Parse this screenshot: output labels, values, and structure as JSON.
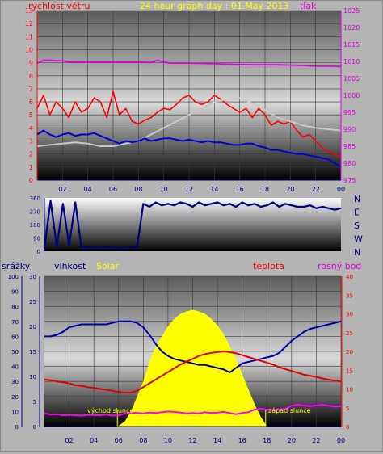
{
  "chart_data": [
    {
      "type": "line",
      "title": "24 hour graph day : 01.May 2013",
      "ylabel_left": "rychlost větru",
      "ylabel_right": "tlak",
      "x_range": [
        0,
        24
      ],
      "x_ticks": [
        "02",
        "04",
        "06",
        "08",
        "10",
        "12",
        "14",
        "16",
        "18",
        "20",
        "22",
        "00"
      ],
      "ylim_left": [
        0,
        13
      ],
      "yticks_left": [
        "0",
        "1",
        "2",
        "3",
        "4",
        "5",
        "6",
        "7",
        "8",
        "9",
        "10",
        "11",
        "12",
        "13"
      ],
      "ylim_right": [
        975,
        1025
      ],
      "yticks_right": [
        "975",
        "980",
        "985",
        "990",
        "995",
        "1000",
        "1005",
        "1010",
        "1015",
        "1020",
        "1025"
      ],
      "colors": {
        "pressure": "#e000e0",
        "gust": "#ff0000",
        "gray_series": "#c8c8c8",
        "wind": "#0000dd"
      },
      "series": [
        {
          "key": "pressure",
          "axis": "right",
          "x": [
            0,
            0.5,
            1,
            1.5,
            2,
            2.5,
            3,
            4,
            5,
            6,
            7,
            8,
            9,
            9.5,
            10,
            10.5,
            11,
            12,
            13,
            14,
            15,
            16,
            17,
            18,
            19,
            20,
            21,
            22,
            23,
            24
          ],
          "values": [
            1009.5,
            1010.3,
            1010.3,
            1010.2,
            1010.2,
            1009.8,
            1009.8,
            1009.8,
            1009.8,
            1009.8,
            1009.8,
            1009.8,
            1009.7,
            1010.3,
            1009.8,
            1009.5,
            1009.5,
            1009.5,
            1009.4,
            1009.3,
            1009.2,
            1009.1,
            1009,
            1009,
            1009,
            1008.9,
            1008.8,
            1008.6,
            1008.6,
            1008.5
          ]
        },
        {
          "key": "gust",
          "axis": "left",
          "x": [
            0,
            0.5,
            1,
            1.5,
            2,
            2.5,
            3,
            3.5,
            4,
            4.5,
            5,
            5.5,
            6,
            6.5,
            7,
            7.5,
            8,
            8.5,
            9,
            9.5,
            10,
            10.5,
            11,
            11.5,
            12,
            12.5,
            13,
            13.5,
            14,
            14.5,
            15,
            15.5,
            16,
            16.5,
            17,
            17.5,
            18,
            18.5,
            19,
            19.5,
            20,
            20.5,
            21,
            21.5,
            22,
            22.5,
            23,
            23.5,
            24
          ],
          "values": [
            5.5,
            6.5,
            5,
            6,
            5.5,
            4.8,
            6,
            5.2,
            5.5,
            6.3,
            6,
            4.8,
            6.8,
            5,
            5.5,
            4.5,
            4.3,
            4.6,
            4.8,
            5.2,
            5.5,
            5.4,
            5.8,
            6.3,
            6.5,
            6,
            5.8,
            6,
            6.5,
            6.2,
            5.8,
            5.5,
            5.2,
            5.5,
            4.8,
            5.5,
            5,
            4.2,
            4.5,
            4.3,
            4.5,
            3.8,
            3.3,
            3.5,
            3,
            2.5,
            2.2,
            2,
            1.8
          ]
        },
        {
          "key": "gray_series",
          "axis": "left",
          "x": [
            0,
            1,
            2,
            3,
            4,
            5,
            6,
            7,
            8,
            9,
            10,
            11,
            12,
            13,
            14,
            15,
            16,
            17,
            18,
            19,
            20,
            21,
            22,
            23,
            24
          ],
          "values": [
            2.6,
            2.7,
            2.8,
            2.9,
            2.8,
            2.6,
            2.6,
            2.8,
            3,
            3.5,
            4,
            4.5,
            5,
            5.5,
            6,
            6.2,
            6.3,
            5.9,
            5.4,
            4.8,
            4.5,
            4.2,
            4,
            3.9,
            3.8
          ]
        },
        {
          "key": "wind",
          "axis": "left",
          "x": [
            0,
            0.5,
            1,
            1.5,
            2,
            2.5,
            3,
            3.5,
            4,
            4.5,
            5,
            5.5,
            6,
            6.5,
            7,
            7.5,
            8,
            8.5,
            9,
            9.5,
            10,
            10.5,
            11,
            11.5,
            12,
            12.5,
            13,
            13.5,
            14,
            14.5,
            15,
            15.5,
            16,
            16.5,
            17,
            17.5,
            18,
            18.5,
            19,
            19.5,
            20,
            20.5,
            21,
            21.5,
            22,
            22.5,
            23,
            23.5,
            24
          ],
          "values": [
            3.5,
            3.8,
            3.5,
            3.3,
            3.5,
            3.6,
            3.4,
            3.5,
            3.5,
            3.6,
            3.4,
            3.2,
            3,
            2.8,
            3,
            2.9,
            3,
            3.2,
            3,
            3.1,
            3.2,
            3.2,
            3.1,
            3,
            3.1,
            3,
            2.9,
            3,
            2.9,
            2.9,
            2.8,
            2.7,
            2.7,
            2.8,
            2.8,
            2.6,
            2.5,
            2.3,
            2.3,
            2.2,
            2.1,
            2,
            2,
            1.9,
            1.8,
            1.7,
            1.6,
            1.3,
            1
          ]
        }
      ]
    },
    {
      "type": "line",
      "ylabel_left": "",
      "x_range": [
        0,
        24
      ],
      "ylim_left": [
        0,
        360
      ],
      "yticks_left": [
        "0",
        "90",
        "180",
        "270",
        "360"
      ],
      "yticks_right": [
        "N",
        "W",
        "S",
        "E",
        "N"
      ],
      "colors": {
        "direction": "#000080"
      },
      "series": [
        {
          "key": "direction",
          "axis": "left",
          "x": [
            0,
            0.5,
            1,
            1.5,
            2,
            2.5,
            3,
            3.5,
            4,
            4.5,
            5,
            5.5,
            6,
            6.5,
            7,
            7.5,
            8,
            8.5,
            9,
            9.5,
            10,
            10.5,
            11,
            11.5,
            12,
            12.5,
            13,
            13.5,
            14,
            14.5,
            15,
            15.5,
            16,
            16.5,
            17,
            17.5,
            18,
            18.5,
            19,
            19.5,
            20,
            20.5,
            21,
            21.5,
            22,
            22.5,
            23,
            23.5,
            24
          ],
          "values": [
            20,
            340,
            30,
            320,
            40,
            330,
            20,
            30,
            25,
            20,
            30,
            25,
            20,
            20,
            25,
            30,
            320,
            300,
            330,
            310,
            320,
            310,
            330,
            320,
            300,
            330,
            310,
            320,
            330,
            310,
            320,
            300,
            330,
            310,
            320,
            300,
            310,
            330,
            300,
            320,
            310,
            300,
            300,
            310,
            290,
            300,
            290,
            280,
            290
          ]
        }
      ]
    },
    {
      "type": "line",
      "ylabels": [
        "srážky",
        "vlhkost",
        "Solar",
        "teplota",
        "rosný bod"
      ],
      "x_range": [
        0,
        24
      ],
      "x_ticks": [
        "02",
        "04",
        "06",
        "08",
        "10",
        "12",
        "14",
        "16",
        "18",
        "20",
        "22",
        "00"
      ],
      "ylim_far_left": [
        0,
        100
      ],
      "yticks_far_left": [
        "0",
        "10",
        "20",
        "30",
        "40",
        "50",
        "60",
        "70",
        "80",
        "90",
        "100"
      ],
      "ylim_left": [
        0,
        30
      ],
      "yticks_left": [
        "0",
        "5",
        "10",
        "15",
        "20",
        "25",
        "30"
      ],
      "ylim_right": [
        0,
        40
      ],
      "yticks_right": [
        "0",
        "5",
        "10",
        "15",
        "20",
        "25",
        "30",
        "35",
        "40"
      ],
      "annotations": [
        {
          "text": "východ slunce",
          "x": 5.9
        },
        {
          "text": "západ slunce",
          "x": 17.9
        }
      ],
      "colors": {
        "humidity": "#0000aa",
        "temperature": "#e00000",
        "dewpoint": "#ff00ff",
        "solar": "#ffff00"
      },
      "series": [
        {
          "key": "humidity",
          "axis": "far_left",
          "x": [
            0,
            0.5,
            1,
            1.5,
            2,
            2.5,
            3,
            3.5,
            4,
            4.5,
            5,
            5.5,
            6,
            6.5,
            7,
            7.5,
            8,
            8.5,
            9,
            9.5,
            10,
            10.5,
            11,
            11.5,
            12,
            12.5,
            13,
            13.5,
            14,
            14.5,
            15,
            15.5,
            16,
            16.5,
            17,
            17.5,
            18,
            18.5,
            19,
            19.5,
            20,
            20.5,
            21,
            21.5,
            22,
            22.5,
            23,
            23.5,
            24
          ],
          "values": [
            60,
            60,
            61,
            63,
            66,
            67,
            68,
            68,
            68,
            68,
            68,
            69,
            70,
            70,
            70,
            69,
            66,
            61,
            55,
            50,
            47,
            45,
            44,
            43,
            42,
            41,
            41,
            40,
            39,
            38,
            36,
            39,
            42,
            43,
            44,
            45,
            46,
            47,
            49,
            53,
            57,
            60,
            63,
            65,
            66,
            67,
            68,
            69,
            70
          ]
        },
        {
          "key": "temperature",
          "axis": "right",
          "x": [
            0,
            0.5,
            1,
            1.5,
            2,
            2.5,
            3,
            3.5,
            4,
            4.5,
            5,
            5.5,
            6,
            6.5,
            7,
            7.5,
            8,
            8.5,
            9,
            9.5,
            10,
            10.5,
            11,
            11.5,
            12,
            12.5,
            13,
            13.5,
            14,
            14.5,
            15,
            15.5,
            16,
            16.5,
            17,
            17.5,
            18,
            18.5,
            19,
            19.5,
            20,
            20.5,
            21,
            21.5,
            22,
            22.5,
            23,
            23.5,
            24
          ],
          "values": [
            12.5,
            12.3,
            12,
            11.8,
            11.5,
            11,
            10.8,
            10.5,
            10.3,
            10,
            9.8,
            9.5,
            9.2,
            9,
            9,
            9.5,
            10.5,
            11.5,
            12.5,
            13.5,
            14.5,
            15.5,
            16.5,
            17.3,
            18,
            18.8,
            19.3,
            19.6,
            19.8,
            20,
            19.8,
            19.5,
            19,
            18.5,
            18,
            17.5,
            17,
            16.5,
            15.8,
            15.3,
            14.8,
            14.3,
            13.8,
            13.5,
            13.2,
            12.8,
            12.5,
            12.2,
            12
          ]
        },
        {
          "key": "dewpoint",
          "axis": "right",
          "x": [
            0,
            0.5,
            1,
            1.5,
            2,
            2.5,
            3,
            3.5,
            4,
            4.5,
            5,
            5.5,
            6,
            6.5,
            7,
            7.5,
            8,
            8.5,
            9,
            9.5,
            10,
            10.5,
            11,
            11.5,
            12,
            12.5,
            13,
            13.5,
            14,
            14.5,
            15,
            15.5,
            16,
            16.5,
            17,
            17.5,
            18,
            18.5,
            19,
            19.5,
            20,
            20.5,
            21,
            21.5,
            22,
            22.5,
            23,
            23.5,
            24
          ],
          "values": [
            3.5,
            3.2,
            3.3,
            3,
            3.1,
            3,
            2.9,
            3.1,
            3,
            3,
            3.2,
            2.9,
            3,
            3.4,
            3.7,
            3.6,
            3.5,
            3.7,
            3.6,
            3.8,
            4,
            3.9,
            3.7,
            3.5,
            3.6,
            3.5,
            3.8,
            3.6,
            3.7,
            3.9,
            3.6,
            3.3,
            3.6,
            3.8,
            4.5,
            4.8,
            4.5,
            4.4,
            4.6,
            4.7,
            5.5,
            5.8,
            5.6,
            5.4,
            5.6,
            5.8,
            5.5,
            5.3,
            5.4
          ]
        },
        {
          "key": "solar",
          "axis": "left",
          "x": [
            5.9,
            6.5,
            7,
            7.5,
            8,
            8.5,
            9,
            9.5,
            10,
            10.5,
            11,
            11.5,
            12,
            12.5,
            13,
            13.5,
            14,
            14.5,
            15,
            15.5,
            16,
            16.5,
            17,
            17.5,
            18
          ],
          "values": [
            0,
            1,
            3,
            6,
            9,
            13,
            16,
            18,
            20,
            21.5,
            22.5,
            23,
            23.3,
            23,
            22.5,
            21.5,
            20.2,
            18.5,
            16,
            13.5,
            10.5,
            7.5,
            4.5,
            2,
            0
          ]
        }
      ]
    }
  ]
}
